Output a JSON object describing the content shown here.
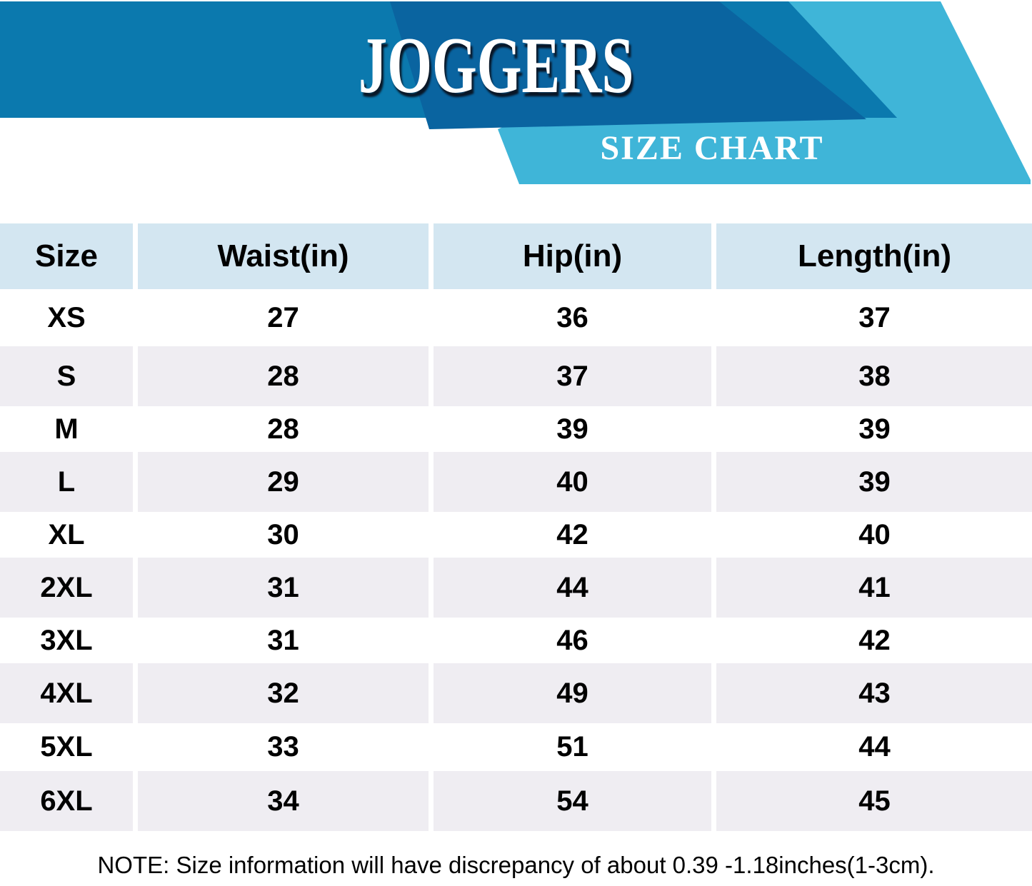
{
  "header": {
    "title": "JOGGERS",
    "subtitle": "SIZE CHART"
  },
  "chart_data": {
    "type": "table",
    "title": "JOGGERS",
    "subtitle": "SIZE CHART",
    "columns": [
      "Size",
      "Waist(in)",
      "Hip(in)",
      "Length(in)"
    ],
    "rows": [
      [
        "XS",
        "27",
        "36",
        "37"
      ],
      [
        "S",
        "28",
        "37",
        "38"
      ],
      [
        "M",
        "28",
        "39",
        "39"
      ],
      [
        "L",
        "29",
        "40",
        "39"
      ],
      [
        "XL",
        "30",
        "42",
        "40"
      ],
      [
        "2XL",
        "31",
        "44",
        "41"
      ],
      [
        "3XL",
        "31",
        "46",
        "42"
      ],
      [
        "4XL",
        "32",
        "49",
        "43"
      ],
      [
        "5XL",
        "33",
        "51",
        "44"
      ],
      [
        "6XL",
        "34",
        "54",
        "45"
      ]
    ],
    "layout_hints": {
      "striping": "rows alternate white and light gray starting with white",
      "header_bg": "#d3e6f1",
      "stripe_bg": "#efedf2"
    }
  },
  "colors": {
    "band_medium_blue": "#0b79ae",
    "band_dark_blue": "#0a64a0",
    "band_cyan": "#3fb5d8",
    "table_header_bg": "#d3e6f1",
    "row_stripe_bg": "#efedf2",
    "text": "#000000",
    "banner_text": "#ffffff"
  },
  "note": "NOTE: Size information will have discrepancy of about 0.39 -1.18inches(1-3cm)."
}
